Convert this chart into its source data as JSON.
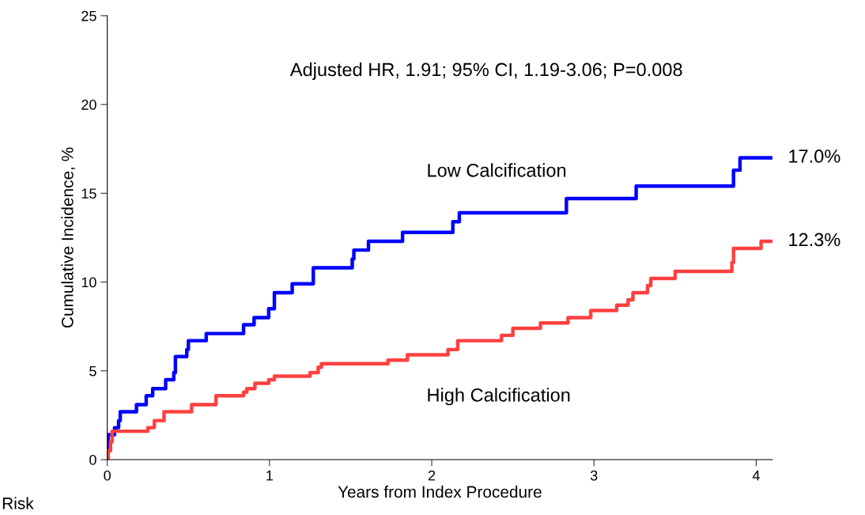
{
  "chart_data": {
    "type": "step",
    "xlabel": "Years from Index Procedure",
    "ylabel": "Cumulative Incidence, %",
    "xlim": [
      0,
      4.1
    ],
    "ylim": [
      0,
      25
    ],
    "xticks": [
      0,
      1,
      2,
      3,
      4
    ],
    "yticks": [
      0,
      5,
      10,
      15,
      20,
      25
    ],
    "grid": false,
    "legend": false,
    "line_style": "solid",
    "marker": "none",
    "series": [
      {
        "name": "Low Calcification",
        "color": "#0000ff",
        "x": [
          0,
          0.005,
          0.045,
          0.07,
          0.08,
          0.18,
          0.24,
          0.28,
          0.36,
          0.41,
          0.42,
          0.49,
          0.5,
          0.61,
          0.84,
          0.905,
          0.995,
          1.03,
          1.14,
          1.27,
          1.51,
          1.52,
          1.61,
          1.82,
          2.13,
          2.17,
          2.83,
          3.26,
          3.86,
          3.9,
          4.1
        ],
        "values": [
          0,
          1.4,
          1.8,
          2.2,
          2.7,
          3.1,
          3.6,
          4.0,
          4.5,
          4.9,
          5.8,
          6.2,
          6.7,
          7.1,
          7.6,
          8.0,
          8.5,
          9.4,
          9.9,
          10.8,
          11.3,
          11.8,
          12.3,
          12.8,
          13.4,
          13.9,
          14.7,
          15.4,
          16.3,
          17.0,
          17.0
        ]
      },
      {
        "name": "High Calcification",
        "color": "#ff4040",
        "x": [
          0,
          0.005,
          0.02,
          0.03,
          0.25,
          0.29,
          0.35,
          0.52,
          0.67,
          0.84,
          0.86,
          0.91,
          0.995,
          1.03,
          1.25,
          1.3,
          1.32,
          1.73,
          1.85,
          2.1,
          2.16,
          2.43,
          2.5,
          2.67,
          2.84,
          2.98,
          3.14,
          3.21,
          3.24,
          3.33,
          3.35,
          3.5,
          3.85,
          3.86,
          4.03,
          4.1
        ],
        "values": [
          0,
          0.5,
          1.0,
          1.6,
          1.8,
          2.2,
          2.7,
          3.1,
          3.6,
          3.8,
          4.0,
          4.3,
          4.5,
          4.7,
          4.9,
          5.2,
          5.4,
          5.6,
          5.9,
          6.2,
          6.7,
          7.0,
          7.4,
          7.7,
          8.0,
          8.4,
          8.7,
          9.0,
          9.4,
          9.8,
          10.2,
          10.6,
          11.1,
          11.9,
          12.3,
          12.3
        ]
      }
    ],
    "annotations": [
      "Adjusted HR, 1.91; 95% CI, 1.19-3.06; P=0.008",
      {
        "text": "17.0%",
        "x": 4.1,
        "y": 17.0
      },
      {
        "text": "12.3%",
        "x": 4.1,
        "y": 12.3
      },
      "Risk"
    ]
  }
}
